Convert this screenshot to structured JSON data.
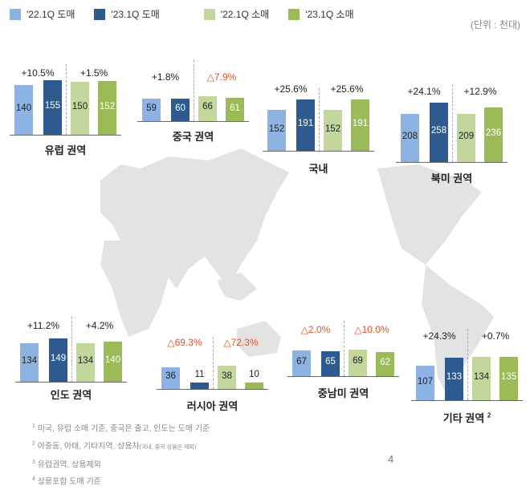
{
  "legend": [
    {
      "label": "'22.1Q 도매",
      "color": "#8db3e2"
    },
    {
      "label": "'23.1Q 도매",
      "color": "#2e5b8f"
    },
    {
      "label": "'22.1Q 소매",
      "color": "#c3d69b"
    },
    {
      "label": "'23.1Q 소매",
      "color": "#9bbb59"
    }
  ],
  "unit_label": "(단위 : 천대)",
  "chart_data": {
    "type": "bar",
    "categories": [
      "'22.1Q 도매",
      "'23.1Q 도매",
      "'22.1Q 소매",
      "'23.1Q 소매"
    ],
    "regions": [
      {
        "name": "유럽 권역",
        "values": [
          140,
          155,
          150,
          152
        ],
        "wholesale_change": "+10.5%",
        "retail_change": "+1.5%"
      },
      {
        "name": "중국 권역",
        "values": [
          59,
          60,
          66,
          61
        ],
        "wholesale_change": "+1.8%",
        "retail_change": "△7.9%"
      },
      {
        "name": "국내",
        "values": [
          152,
          191,
          152,
          191
        ],
        "wholesale_change": "+25.6%",
        "retail_change": "+25.6%"
      },
      {
        "name": "북미 권역",
        "values": [
          208,
          258,
          209,
          236
        ],
        "wholesale_change": "+24.1%",
        "retail_change": "+12.9%"
      },
      {
        "name": "인도 권역",
        "values": [
          134,
          149,
          134,
          140
        ],
        "wholesale_change": "+11.2%",
        "retail_change": "+4.2%"
      },
      {
        "name": "러시아 권역",
        "values": [
          36,
          11,
          38,
          10
        ],
        "wholesale_change": "△69.3%",
        "retail_change": "△72.3%"
      },
      {
        "name": "중남미 권역",
        "values": [
          67,
          65,
          69,
          62
        ],
        "wholesale_change": "△2.0%",
        "retail_change": "△10.0%"
      },
      {
        "name": "기타 권역",
        "name_sup": "2",
        "values": [
          107,
          133,
          134,
          135
        ],
        "wholesale_change": "+24.3%",
        "retail_change": "+0.7%"
      }
    ],
    "negative_color": "#d9542c"
  },
  "notes": [
    {
      "sup": "1",
      "text": "미국, 유럽 소매 기준, 중국은 출고, 인도는 도매 기준"
    },
    {
      "sup": "2",
      "text": "아중동, 아태, 기타지역, 상용차",
      "small": "(국내, 중국 상용은 제외)"
    },
    {
      "sup": "3",
      "text": "유럽권역, 상용제외"
    },
    {
      "sup": "4",
      "text": "상용포함 도매 기준"
    }
  ],
  "page_number": "4"
}
